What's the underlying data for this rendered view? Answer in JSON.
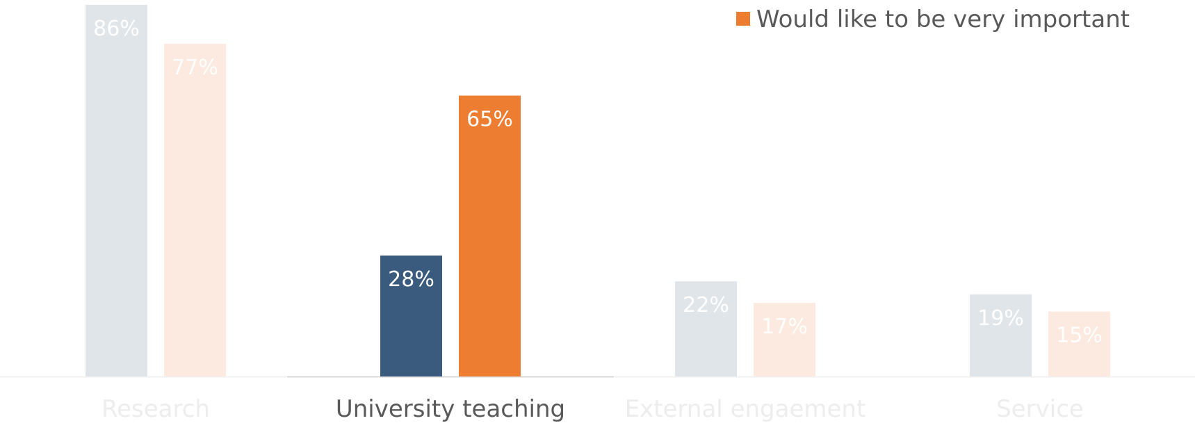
{
  "chart_data": {
    "type": "bar",
    "categories": [
      "Research",
      "University teaching",
      "External engaement",
      "Service"
    ],
    "highlighted_category": "University teaching",
    "series": [
      {
        "values": [
          86,
          28,
          22,
          19
        ],
        "labels": [
          "86%",
          "28%",
          "22%",
          "19%"
        ],
        "color": "#3A5B7D",
        "faded_color": "#E0E5EA"
      },
      {
        "name": "Would like to be very important",
        "values": [
          77,
          65,
          17,
          15
        ],
        "labels": [
          "77%",
          "65%",
          "17%",
          "15%"
        ],
        "color": "#ED7D31",
        "faded_color": "#FCE9DF"
      }
    ],
    "legend": {
      "visible_entry": "Would like to be very important",
      "position": "top-right"
    },
    "ylim": [
      0,
      86
    ],
    "grid": false,
    "colors": {
      "axis_line": "#F2F2F2",
      "highlight_axis_line": "#D9D9D9",
      "label_on_bar": "#FFFFFF",
      "category_text": "#595959",
      "category_text_faded": "#EDEDED",
      "legend_text": "#595959"
    }
  }
}
